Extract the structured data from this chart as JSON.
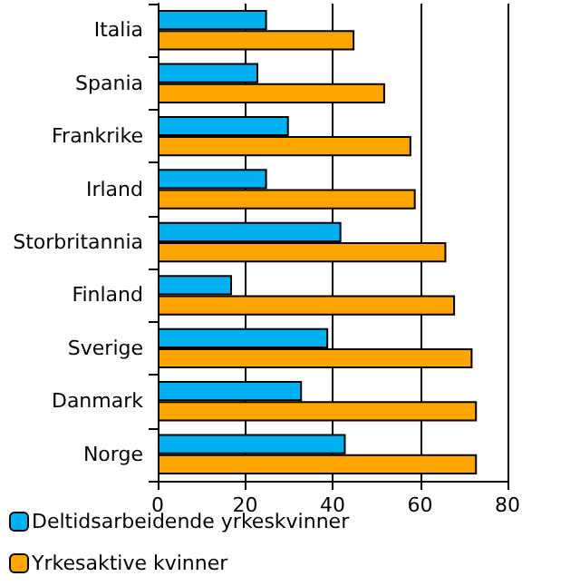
{
  "chart_data": {
    "type": "bar",
    "orientation": "horizontal",
    "categories": [
      "Italia",
      "Spania",
      "Frankrike",
      "Irland",
      "Storbritannia",
      "Finland",
      "Sverige",
      "Danmark",
      "Norge"
    ],
    "series": [
      {
        "name": "Deltidsarbeidende yrkeskvinner",
        "color": "#00b0f0",
        "values": [
          25,
          23,
          30,
          25,
          42,
          17,
          39,
          33,
          43
        ]
      },
      {
        "name": "Yrkesaktive kvinner",
        "color": "#ffa500",
        "values": [
          45,
          52,
          58,
          59,
          66,
          68,
          72,
          73,
          73
        ]
      }
    ],
    "xlim": [
      0,
      80
    ],
    "xticks": [
      0,
      20,
      40,
      60,
      80
    ],
    "grid": "x",
    "legend": "bottom"
  }
}
